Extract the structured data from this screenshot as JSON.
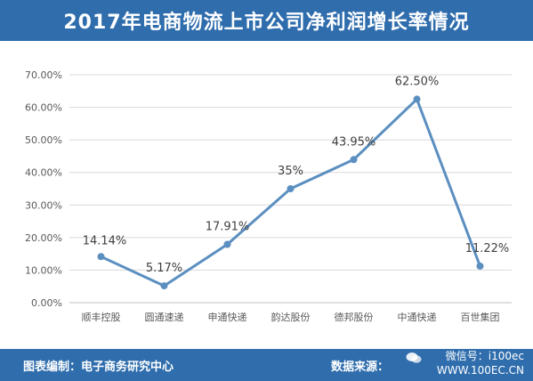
{
  "title": "2017年电商物流上市公司净利润增长率情况",
  "footer": {
    "left": "图表编制：电子商务研究中心",
    "right": "数据来源：",
    "watermark_wechat": "微信号：i100ec",
    "watermark_site": "WWW.100EC.CN"
  },
  "colors": {
    "banner": "#2f6dad",
    "line": "#5b8fc0",
    "grid": "#d9d9d9",
    "axis_text": "#595959",
    "label_text": "#404040"
  },
  "chart_data": {
    "type": "line",
    "title": "2017年电商物流上市公司净利润增长率情况",
    "xlabel": "",
    "ylabel": "",
    "categories": [
      "顺丰控股",
      "圆通速递",
      "申通快递",
      "韵达股份",
      "德邦股份",
      "中通快递",
      "百世集团"
    ],
    "series": [
      {
        "values": [
          14.14,
          5.17,
          17.91,
          35,
          43.95,
          62.5,
          11.22
        ],
        "labels": [
          "14.14%",
          "5.17%",
          "17.91%",
          "35%",
          "43.95%",
          "62.50%",
          "11.22%"
        ]
      }
    ],
    "ylim": [
      0,
      70
    ],
    "yticks": [
      0,
      10,
      20,
      30,
      40,
      50,
      60,
      70
    ],
    "ytick_labels": [
      "0.00%",
      "10.00%",
      "20.00%",
      "30.00%",
      "40.00%",
      "50.00%",
      "60.00%",
      "70.00%"
    ],
    "grid": true,
    "legend": "none"
  }
}
